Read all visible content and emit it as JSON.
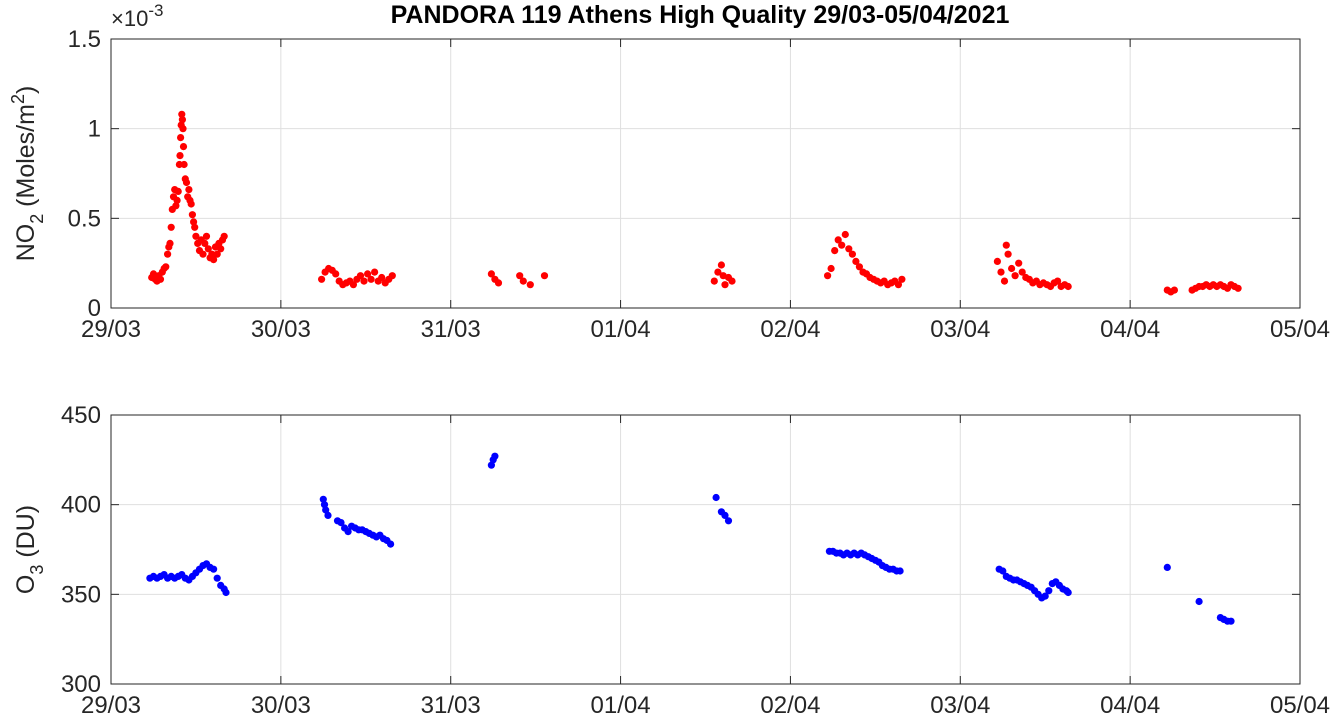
{
  "title": "PANDORA 119 Athens High Quality 29/03-05/04/2021",
  "chart_data": [
    {
      "type": "scatter",
      "ylabel_main": "NO",
      "ylabel_sub": "2",
      "ylabel_rest": " (Moles/m",
      "ylabel_sup": "2",
      "ylabel_close": ")",
      "exponent_prefix": "×10",
      "exponent_power": "-3",
      "xlim": [
        "2021-03-29",
        "2021-04-05"
      ],
      "ylim": [
        0,
        1.5
      ],
      "yticks": [
        0,
        0.5,
        1,
        1.5
      ],
      "ytick_labels": [
        "0",
        "0.5",
        "1",
        "1.5"
      ],
      "xtick_labels": [
        "29/03",
        "30/03",
        "31/03",
        "01/04",
        "02/04",
        "03/04",
        "04/04",
        "05/04"
      ],
      "grid": true,
      "color": "#ff0000",
      "points": [
        [
          "2021-03-29 05:45",
          0.17
        ],
        [
          "2021-03-29 06:00",
          0.19
        ],
        [
          "2021-03-29 06:15",
          0.16
        ],
        [
          "2021-03-29 06:30",
          0.15
        ],
        [
          "2021-03-29 06:45",
          0.18
        ],
        [
          "2021-03-29 07:00",
          0.16
        ],
        [
          "2021-03-29 07:15",
          0.2
        ],
        [
          "2021-03-29 07:30",
          0.22
        ],
        [
          "2021-03-29 07:45",
          0.23
        ],
        [
          "2021-03-29 08:00",
          0.3
        ],
        [
          "2021-03-29 08:10",
          0.34
        ],
        [
          "2021-03-29 08:20",
          0.36
        ],
        [
          "2021-03-29 08:30",
          0.45
        ],
        [
          "2021-03-29 08:40",
          0.55
        ],
        [
          "2021-03-29 08:50",
          0.62
        ],
        [
          "2021-03-29 09:00",
          0.66
        ],
        [
          "2021-03-29 09:10",
          0.57
        ],
        [
          "2021-03-29 09:20",
          0.6
        ],
        [
          "2021-03-29 09:30",
          0.65
        ],
        [
          "2021-03-29 09:40",
          0.8
        ],
        [
          "2021-03-29 09:45",
          0.85
        ],
        [
          "2021-03-29 09:50",
          0.95
        ],
        [
          "2021-03-29 09:55",
          1.02
        ],
        [
          "2021-03-29 10:00",
          1.08
        ],
        [
          "2021-03-29 10:05",
          1.05
        ],
        [
          "2021-03-29 10:10",
          1.0
        ],
        [
          "2021-03-29 10:15",
          0.9
        ],
        [
          "2021-03-29 10:20",
          0.8
        ],
        [
          "2021-03-29 10:30",
          0.72
        ],
        [
          "2021-03-29 10:40",
          0.7
        ],
        [
          "2021-03-29 10:50",
          0.62
        ],
        [
          "2021-03-29 11:00",
          0.66
        ],
        [
          "2021-03-29 11:10",
          0.6
        ],
        [
          "2021-03-29 11:20",
          0.58
        ],
        [
          "2021-03-29 11:30",
          0.52
        ],
        [
          "2021-03-29 11:40",
          0.48
        ],
        [
          "2021-03-29 11:50",
          0.45
        ],
        [
          "2021-03-29 12:00",
          0.4
        ],
        [
          "2021-03-29 12:15",
          0.36
        ],
        [
          "2021-03-29 12:30",
          0.32
        ],
        [
          "2021-03-29 12:45",
          0.38
        ],
        [
          "2021-03-29 13:00",
          0.3
        ],
        [
          "2021-03-29 13:15",
          0.36
        ],
        [
          "2021-03-29 13:30",
          0.4
        ],
        [
          "2021-03-29 13:45",
          0.33
        ],
        [
          "2021-03-29 14:00",
          0.28
        ],
        [
          "2021-03-29 14:15",
          0.3
        ],
        [
          "2021-03-29 14:30",
          0.27
        ],
        [
          "2021-03-29 14:45",
          0.34
        ],
        [
          "2021-03-29 15:00",
          0.3
        ],
        [
          "2021-03-29 15:15",
          0.36
        ],
        [
          "2021-03-29 15:30",
          0.33
        ],
        [
          "2021-03-29 15:45",
          0.38
        ],
        [
          "2021-03-29 16:00",
          0.4
        ],
        [
          "2021-03-30 05:45",
          0.16
        ],
        [
          "2021-03-30 06:15",
          0.2
        ],
        [
          "2021-03-30 06:45",
          0.22
        ],
        [
          "2021-03-30 07:15",
          0.21
        ],
        [
          "2021-03-30 07:45",
          0.19
        ],
        [
          "2021-03-30 08:15",
          0.15
        ],
        [
          "2021-03-30 08:45",
          0.13
        ],
        [
          "2021-03-30 09:15",
          0.14
        ],
        [
          "2021-03-30 09:45",
          0.15
        ],
        [
          "2021-03-30 10:15",
          0.13
        ],
        [
          "2021-03-30 10:45",
          0.16
        ],
        [
          "2021-03-30 11:15",
          0.18
        ],
        [
          "2021-03-30 11:45",
          0.15
        ],
        [
          "2021-03-30 12:15",
          0.19
        ],
        [
          "2021-03-30 12:45",
          0.16
        ],
        [
          "2021-03-30 13:15",
          0.2
        ],
        [
          "2021-03-30 13:45",
          0.15
        ],
        [
          "2021-03-30 14:15",
          0.17
        ],
        [
          "2021-03-30 14:45",
          0.14
        ],
        [
          "2021-03-30 15:15",
          0.16
        ],
        [
          "2021-03-30 15:45",
          0.18
        ],
        [
          "2021-03-31 05:45",
          0.19
        ],
        [
          "2021-03-31 06:15",
          0.16
        ],
        [
          "2021-03-31 06:45",
          0.14
        ],
        [
          "2021-03-31 09:45",
          0.18
        ],
        [
          "2021-03-31 10:15",
          0.15
        ],
        [
          "2021-03-31 11:15",
          0.13
        ],
        [
          "2021-03-31 13:15",
          0.18
        ],
        [
          "2021-04-01 13:15",
          0.15
        ],
        [
          "2021-04-01 13:45",
          0.2
        ],
        [
          "2021-04-01 14:15",
          0.24
        ],
        [
          "2021-04-01 14:30",
          0.18
        ],
        [
          "2021-04-01 14:45",
          0.13
        ],
        [
          "2021-04-01 15:15",
          0.17
        ],
        [
          "2021-04-01 15:45",
          0.15
        ],
        [
          "2021-04-02 05:15",
          0.18
        ],
        [
          "2021-04-02 05:45",
          0.22
        ],
        [
          "2021-04-02 06:15",
          0.32
        ],
        [
          "2021-04-02 06:45",
          0.38
        ],
        [
          "2021-04-02 07:15",
          0.35
        ],
        [
          "2021-04-02 07:45",
          0.41
        ],
        [
          "2021-04-02 08:15",
          0.33
        ],
        [
          "2021-04-02 08:45",
          0.3
        ],
        [
          "2021-04-02 09:15",
          0.26
        ],
        [
          "2021-04-02 09:45",
          0.23
        ],
        [
          "2021-04-02 10:15",
          0.2
        ],
        [
          "2021-04-02 10:45",
          0.19
        ],
        [
          "2021-04-02 11:15",
          0.17
        ],
        [
          "2021-04-02 11:45",
          0.16
        ],
        [
          "2021-04-02 12:15",
          0.15
        ],
        [
          "2021-04-02 12:45",
          0.14
        ],
        [
          "2021-04-02 13:15",
          0.15
        ],
        [
          "2021-04-02 13:45",
          0.13
        ],
        [
          "2021-04-02 14:15",
          0.14
        ],
        [
          "2021-04-02 14:45",
          0.15
        ],
        [
          "2021-04-02 15:15",
          0.13
        ],
        [
          "2021-04-02 15:45",
          0.16
        ],
        [
          "2021-04-03 05:15",
          0.26
        ],
        [
          "2021-04-03 05:45",
          0.2
        ],
        [
          "2021-04-03 06:15",
          0.15
        ],
        [
          "2021-04-03 06:30",
          0.35
        ],
        [
          "2021-04-03 06:45",
          0.3
        ],
        [
          "2021-04-03 07:15",
          0.22
        ],
        [
          "2021-04-03 07:45",
          0.18
        ],
        [
          "2021-04-03 08:15",
          0.25
        ],
        [
          "2021-04-03 08:45",
          0.2
        ],
        [
          "2021-04-03 09:15",
          0.17
        ],
        [
          "2021-04-03 09:45",
          0.16
        ],
        [
          "2021-04-03 10:15",
          0.14
        ],
        [
          "2021-04-03 10:45",
          0.15
        ],
        [
          "2021-04-03 11:15",
          0.13
        ],
        [
          "2021-04-03 11:45",
          0.14
        ],
        [
          "2021-04-03 12:15",
          0.13
        ],
        [
          "2021-04-03 12:45",
          0.12
        ],
        [
          "2021-04-03 13:15",
          0.14
        ],
        [
          "2021-04-03 13:45",
          0.15
        ],
        [
          "2021-04-03 14:15",
          0.12
        ],
        [
          "2021-04-03 14:45",
          0.13
        ],
        [
          "2021-04-03 15:15",
          0.12
        ],
        [
          "2021-04-04 05:15",
          0.1
        ],
        [
          "2021-04-04 05:45",
          0.09
        ],
        [
          "2021-04-04 06:15",
          0.1
        ],
        [
          "2021-04-04 08:45",
          0.1
        ],
        [
          "2021-04-04 09:15",
          0.11
        ],
        [
          "2021-04-04 09:45",
          0.12
        ],
        [
          "2021-04-04 10:15",
          0.12
        ],
        [
          "2021-04-04 10:45",
          0.13
        ],
        [
          "2021-04-04 11:15",
          0.12
        ],
        [
          "2021-04-04 11:45",
          0.13
        ],
        [
          "2021-04-04 12:15",
          0.12
        ],
        [
          "2021-04-04 12:45",
          0.13
        ],
        [
          "2021-04-04 13:15",
          0.12
        ],
        [
          "2021-04-04 13:45",
          0.11
        ],
        [
          "2021-04-04 14:15",
          0.13
        ],
        [
          "2021-04-04 14:45",
          0.12
        ],
        [
          "2021-04-04 15:15",
          0.11
        ]
      ]
    },
    {
      "type": "scatter",
      "ylabel_main": "O",
      "ylabel_sub": "3",
      "ylabel_rest": " (DU)",
      "xlim": [
        "2021-03-29",
        "2021-04-05"
      ],
      "ylim": [
        300,
        450
      ],
      "yticks": [
        300,
        350,
        400,
        450
      ],
      "ytick_labels": [
        "300",
        "350",
        "400",
        "450"
      ],
      "xtick_labels": [
        "29/03",
        "30/03",
        "31/03",
        "01/04",
        "02/04",
        "03/04",
        "04/04",
        "05/04"
      ],
      "grid": true,
      "color": "#0000ff",
      "points": [
        [
          "2021-03-29 05:30",
          359
        ],
        [
          "2021-03-29 06:00",
          360
        ],
        [
          "2021-03-29 06:30",
          359
        ],
        [
          "2021-03-29 07:00",
          360
        ],
        [
          "2021-03-29 07:30",
          361
        ],
        [
          "2021-03-29 08:00",
          359
        ],
        [
          "2021-03-29 08:30",
          360
        ],
        [
          "2021-03-29 09:00",
          359
        ],
        [
          "2021-03-29 09:30",
          360
        ],
        [
          "2021-03-29 10:00",
          361
        ],
        [
          "2021-03-29 10:30",
          359
        ],
        [
          "2021-03-29 11:00",
          358
        ],
        [
          "2021-03-29 11:30",
          360
        ],
        [
          "2021-03-29 12:00",
          362
        ],
        [
          "2021-03-29 12:30",
          364
        ],
        [
          "2021-03-29 13:00",
          366
        ],
        [
          "2021-03-29 13:30",
          367
        ],
        [
          "2021-03-29 14:00",
          365
        ],
        [
          "2021-03-29 14:30",
          364
        ],
        [
          "2021-03-29 15:00",
          359
        ],
        [
          "2021-03-29 15:30",
          355
        ],
        [
          "2021-03-29 16:00",
          353
        ],
        [
          "2021-03-29 16:15",
          351
        ],
        [
          "2021-03-30 06:00",
          403
        ],
        [
          "2021-03-30 06:10",
          400
        ],
        [
          "2021-03-30 06:20",
          397
        ],
        [
          "2021-03-30 06:40",
          394
        ],
        [
          "2021-03-30 08:00",
          391
        ],
        [
          "2021-03-30 08:30",
          390
        ],
        [
          "2021-03-30 09:00",
          387
        ],
        [
          "2021-03-30 09:30",
          385
        ],
        [
          "2021-03-30 10:00",
          388
        ],
        [
          "2021-03-30 10:30",
          387
        ],
        [
          "2021-03-30 11:00",
          386
        ],
        [
          "2021-03-30 11:30",
          386
        ],
        [
          "2021-03-30 12:00",
          385
        ],
        [
          "2021-03-30 12:30",
          384
        ],
        [
          "2021-03-30 13:00",
          383
        ],
        [
          "2021-03-30 13:30",
          382
        ],
        [
          "2021-03-30 14:00",
          383
        ],
        [
          "2021-03-30 14:30",
          381
        ],
        [
          "2021-03-30 15:00",
          380
        ],
        [
          "2021-03-30 15:30",
          378
        ],
        [
          "2021-03-31 05:45",
          422
        ],
        [
          "2021-03-31 06:00",
          425
        ],
        [
          "2021-03-31 06:15",
          427
        ],
        [
          "2021-04-01 13:30",
          404
        ],
        [
          "2021-04-01 14:15",
          396
        ],
        [
          "2021-04-01 14:45",
          394
        ],
        [
          "2021-04-01 15:15",
          391
        ],
        [
          "2021-04-02 05:30",
          374
        ],
        [
          "2021-04-02 06:00",
          374
        ],
        [
          "2021-04-02 06:30",
          373
        ],
        [
          "2021-04-02 07:00",
          373
        ],
        [
          "2021-04-02 07:30",
          372
        ],
        [
          "2021-04-02 08:00",
          373
        ],
        [
          "2021-04-02 08:30",
          372
        ],
        [
          "2021-04-02 09:00",
          373
        ],
        [
          "2021-04-02 09:30",
          372
        ],
        [
          "2021-04-02 10:00",
          373
        ],
        [
          "2021-04-02 10:30",
          372
        ],
        [
          "2021-04-02 11:00",
          371
        ],
        [
          "2021-04-02 11:30",
          370
        ],
        [
          "2021-04-02 12:00",
          369
        ],
        [
          "2021-04-02 12:30",
          368
        ],
        [
          "2021-04-02 13:00",
          366
        ],
        [
          "2021-04-02 13:30",
          365
        ],
        [
          "2021-04-02 14:00",
          364
        ],
        [
          "2021-04-02 14:30",
          364
        ],
        [
          "2021-04-02 15:00",
          363
        ],
        [
          "2021-04-02 15:30",
          363
        ],
        [
          "2021-04-03 05:30",
          364
        ],
        [
          "2021-04-03 06:00",
          363
        ],
        [
          "2021-04-03 06:30",
          360
        ],
        [
          "2021-04-03 07:00",
          359
        ],
        [
          "2021-04-03 07:30",
          358
        ],
        [
          "2021-04-03 08:00",
          358
        ],
        [
          "2021-04-03 08:30",
          357
        ],
        [
          "2021-04-03 09:00",
          356
        ],
        [
          "2021-04-03 09:30",
          355
        ],
        [
          "2021-04-03 10:00",
          354
        ],
        [
          "2021-04-03 10:30",
          352
        ],
        [
          "2021-04-03 11:00",
          350
        ],
        [
          "2021-04-03 11:30",
          348
        ],
        [
          "2021-04-03 12:00",
          349
        ],
        [
          "2021-04-03 12:30",
          352
        ],
        [
          "2021-04-03 13:00",
          356
        ],
        [
          "2021-04-03 13:30",
          357
        ],
        [
          "2021-04-03 14:00",
          355
        ],
        [
          "2021-04-03 14:30",
          353
        ],
        [
          "2021-04-03 15:00",
          352
        ],
        [
          "2021-04-03 15:15",
          351
        ],
        [
          "2021-04-04 05:15",
          365
        ],
        [
          "2021-04-04 09:45",
          346
        ],
        [
          "2021-04-04 12:45",
          337
        ],
        [
          "2021-04-04 13:15",
          336
        ],
        [
          "2021-04-04 13:45",
          335
        ],
        [
          "2021-04-04 14:15",
          335
        ]
      ]
    }
  ]
}
